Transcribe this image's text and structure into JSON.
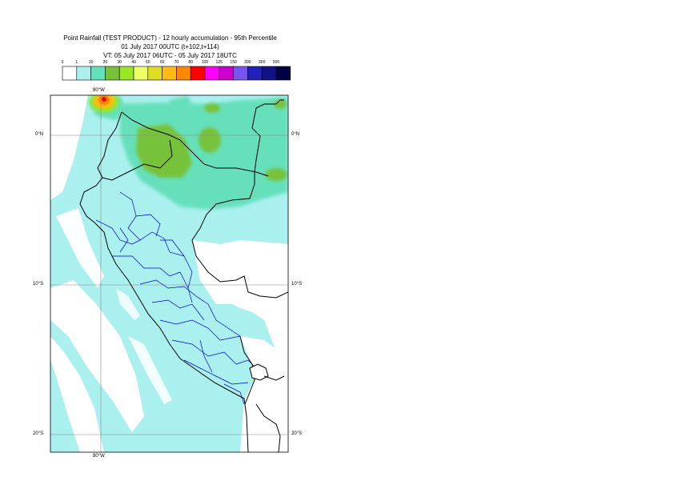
{
  "title": {
    "line1": "Point Rainfall (TEST PRODUCT) - 12 hourly accumulation - 95th Percentile",
    "line2": "01 July 2017 00UTC (t+102,t+114)",
    "line3": "VT: 05 July 2017 06UTC - 05 July 2017 18UTC"
  },
  "legend": {
    "labels": [
      "0",
      "1",
      "10",
      "20",
      "30",
      "40",
      "50",
      "60",
      "70",
      "80",
      "100",
      "125",
      "150",
      "200",
      "300",
      "500"
    ],
    "colors": [
      "#ffffff",
      "#aaf0ee",
      "#66e0bb",
      "#77c23a",
      "#99e626",
      "#eeff66",
      "#dddd22",
      "#ffbb11",
      "#ff8800",
      "#ff0000",
      "#ff00ff",
      "#cc00cc",
      "#7755ee",
      "#2222bb",
      "#111188",
      "#000044"
    ]
  },
  "axes": {
    "lon_top": "80°W",
    "lon_bottom": "80°W",
    "lat_left": [
      "0°N",
      "10°S",
      "20°S"
    ],
    "lat_right": [
      "0°N",
      "10°S",
      "20°S"
    ]
  },
  "colors": {
    "sea": "#aaf0ee",
    "land": "#ffffff",
    "rain_light": "#66e0bb",
    "rain_moderate": "#77c23a",
    "rain_heavy": "#ffbb11",
    "rain_extreme": "#ff0000",
    "border_national": "#000000",
    "border_regional": "#0000cc",
    "grid": "#888888"
  }
}
